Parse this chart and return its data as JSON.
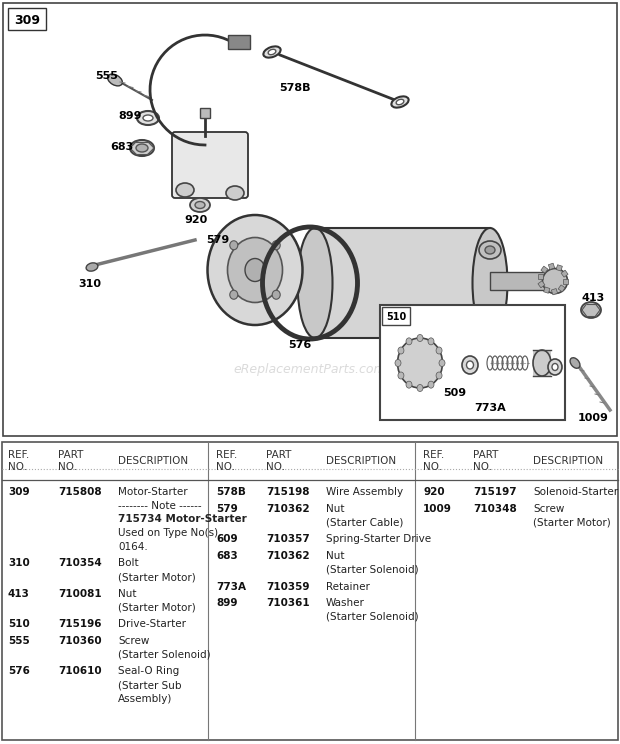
{
  "bg_color": "#ffffff",
  "diag_bg": "#ffffff",
  "table_col1": [
    {
      "ref": "309",
      "part": "715808",
      "desc": "Motor-Starter",
      "extra": [
        "-------- Note ------",
        "715734 Motor-Starter",
        "Used on Type No(s).",
        "0164."
      ]
    },
    {
      "ref": "310",
      "part": "710354",
      "desc": "Bolt",
      "extra": [
        "(Starter Motor)"
      ]
    },
    {
      "ref": "413",
      "part": "710081",
      "desc": "Nut",
      "extra": [
        "(Starter Motor)"
      ]
    },
    {
      "ref": "510",
      "part": "715196",
      "desc": "Drive-Starter",
      "extra": []
    },
    {
      "ref": "555",
      "part": "710360",
      "desc": "Screw",
      "extra": [
        "(Starter Solenoid)"
      ]
    },
    {
      "ref": "576",
      "part": "710610",
      "desc": "Seal-O Ring",
      "extra": [
        "(Starter Sub",
        "Assembly)"
      ]
    }
  ],
  "table_col2": [
    {
      "ref": "578B",
      "part": "715198",
      "desc": "Wire Assembly",
      "extra": []
    },
    {
      "ref": "579",
      "part": "710362",
      "desc": "Nut",
      "extra": [
        "(Starter Cable)"
      ]
    },
    {
      "ref": "609",
      "part": "710357",
      "desc": "Spring-Starter Drive",
      "extra": []
    },
    {
      "ref": "683",
      "part": "710362",
      "desc": "Nut",
      "extra": [
        "(Starter Solenoid)"
      ]
    },
    {
      "ref": "773A",
      "part": "710359",
      "desc": "Retainer",
      "extra": []
    },
    {
      "ref": "899",
      "part": "710361",
      "desc": "Washer",
      "extra": [
        "(Starter Solenoid)"
      ]
    }
  ],
  "table_col3": [
    {
      "ref": "920",
      "part": "715197",
      "desc": "Solenoid-Starter",
      "extra": []
    },
    {
      "ref": "1009",
      "part": "710348",
      "desc": "Screw",
      "extra": [
        "(Starter Motor)"
      ]
    }
  ],
  "watermark": "eReplacementParts.com"
}
